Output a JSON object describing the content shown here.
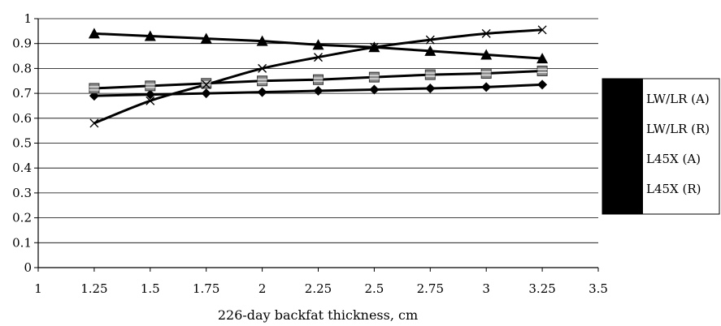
{
  "chart_data": {
    "type": "line",
    "title": "",
    "xlabel": "226-day backfat thickness, cm",
    "ylabel": "",
    "xlim": [
      1,
      3.5
    ],
    "ylim": [
      0,
      1
    ],
    "x_ticks": [
      "1",
      "1.25",
      "1.5",
      "1.75",
      "2",
      "2.25",
      "2.5",
      "2.75",
      "3",
      "3.25",
      "3.5"
    ],
    "y_ticks": [
      "0",
      "0.1",
      "0.2",
      "0.3",
      "0.4",
      "0.5",
      "0.6",
      "0.7",
      "0.8",
      "0.9",
      "1"
    ],
    "grid": "horizontal",
    "legend_position": "right",
    "x": [
      1.25,
      1.5,
      1.75,
      2,
      2.25,
      2.5,
      2.75,
      3,
      3.25
    ],
    "series": [
      {
        "name": "LW/LR (A)",
        "marker": "diamond",
        "values": [
          0.69,
          0.695,
          0.7,
          0.705,
          0.71,
          0.715,
          0.72,
          0.725,
          0.735
        ]
      },
      {
        "name": "LW/LR (R)",
        "marker": "square",
        "values": [
          0.72,
          0.73,
          0.74,
          0.75,
          0.755,
          0.765,
          0.775,
          0.78,
          0.79
        ]
      },
      {
        "name": "L45X (A)",
        "marker": "triangle",
        "values": [
          0.94,
          0.93,
          0.92,
          0.91,
          0.895,
          0.885,
          0.87,
          0.855,
          0.84
        ]
      },
      {
        "name": "L45X (R)",
        "marker": "x",
        "values": [
          0.58,
          0.67,
          0.735,
          0.8,
          0.845,
          0.885,
          0.915,
          0.94,
          0.955
        ]
      }
    ]
  }
}
